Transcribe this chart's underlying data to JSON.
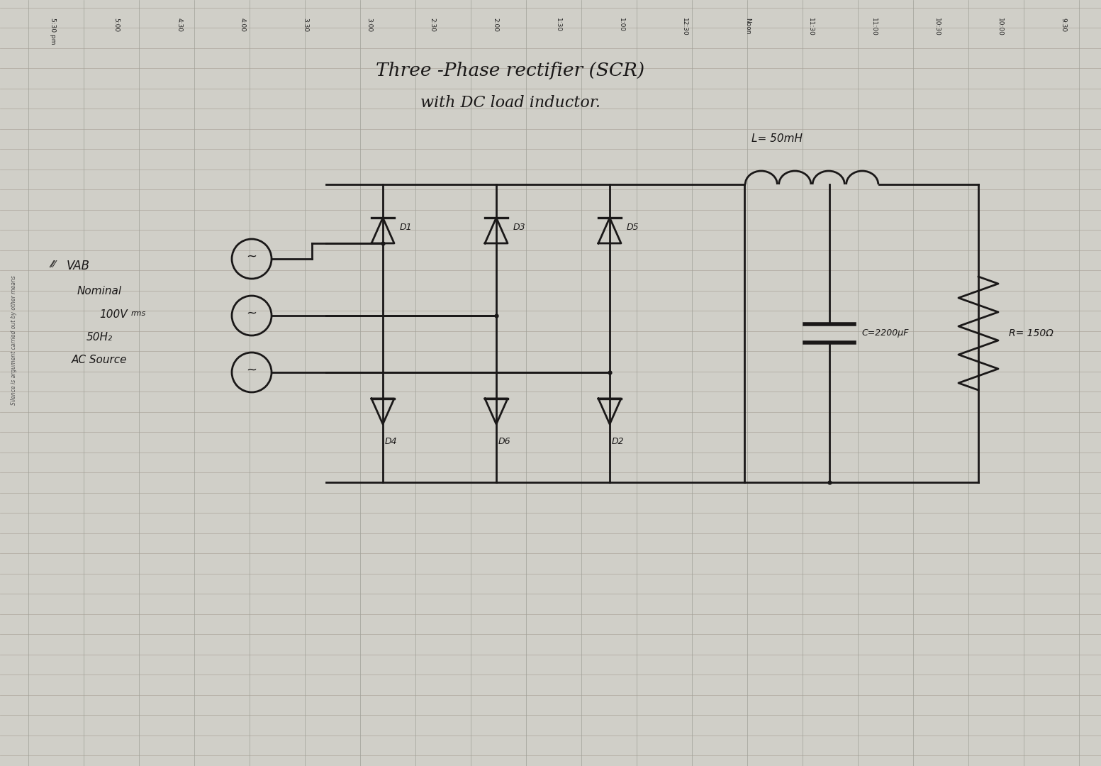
{
  "bg_color": "#d0cfc8",
  "paper_color": "#e8e6df",
  "line_color": "#b0aaa0",
  "ink_color": "#1a1818",
  "time_labels": [
    "5:30 pm",
    "5:00",
    "4:30",
    "4:00",
    "3:30",
    "3:00",
    "2:30",
    "2:00",
    "1:30",
    "1:00",
    "12:30",
    "Noon",
    "11:30",
    "11:00",
    "10:30",
    "10:00",
    "9:30"
  ],
  "title_line1": "Three -Phase rectifier (SCR)",
  "title_line2": "with DC load inductor.",
  "silence_text": "Silence is argument carried out by other means",
  "left_labels": [
    "VAB",
    "Nominal",
    "100V rms",
    "50H₂",
    "AC Source"
  ],
  "L_label": "L= 50mH",
  "C_label": "C=2200μF",
  "R_label": "R= 150Ω",
  "figure_width": 15.53,
  "figure_height": 10.8,
  "dpi": 100
}
